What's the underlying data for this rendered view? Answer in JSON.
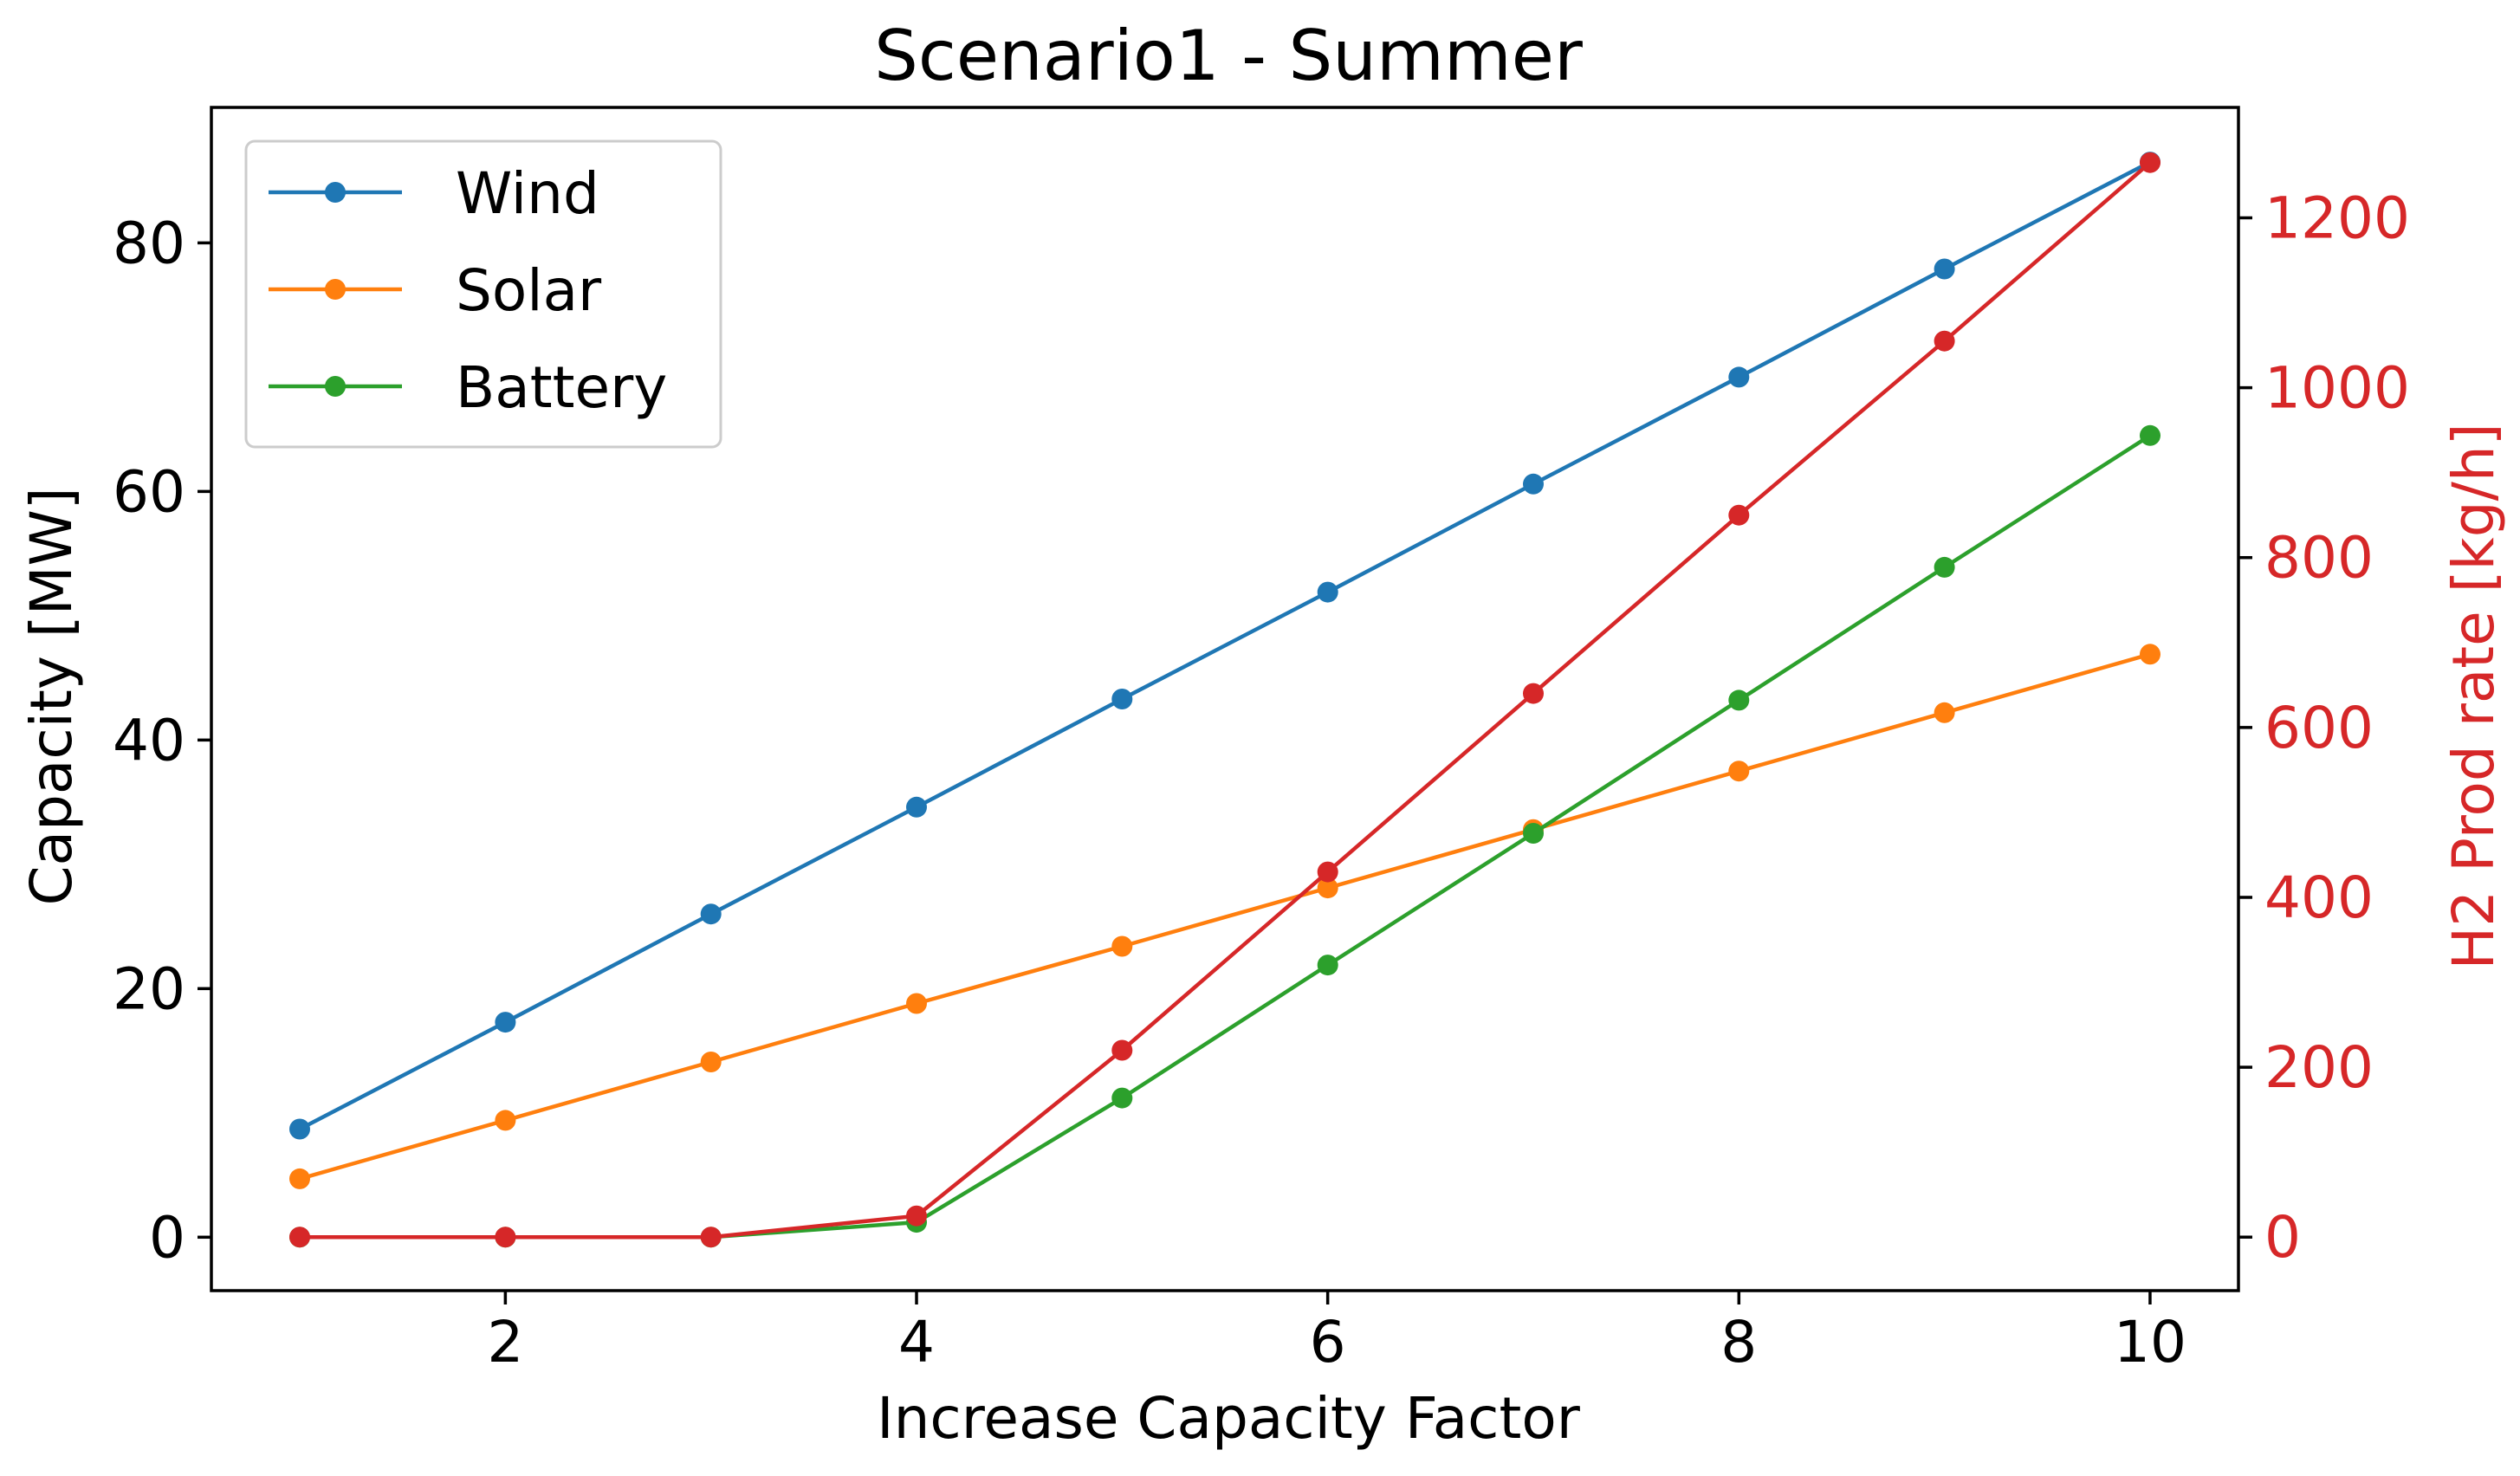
{
  "chart_data": {
    "type": "line",
    "title": "Scenario1 - Summer",
    "xlabel": "Increase Capacity Factor",
    "ylabel": "Capacity [MW]",
    "y2label": "H2 Prod rate [kg/h]",
    "xlim": [
      0.57,
      10.43
    ],
    "ylim": [
      -4.3,
      90.9
    ],
    "y2lim": [
      -63,
      1330
    ],
    "x_ticks": [
      2,
      4,
      6,
      8,
      10
    ],
    "y_ticks": [
      0,
      20,
      40,
      60,
      80
    ],
    "y2_ticks": [
      0,
      200,
      400,
      600,
      800,
      1000,
      1200
    ],
    "grid": false,
    "legend_position": "top-left",
    "x": [
      1,
      2,
      3,
      4,
      5,
      6,
      7,
      8,
      9,
      10
    ],
    "series": [
      {
        "name": "Wind",
        "axis": "left",
        "color": "#1f77b4",
        "values": [
          8.7,
          17.3,
          26.0,
          34.6,
          43.3,
          51.9,
          60.6,
          69.2,
          77.9,
          86.5
        ]
      },
      {
        "name": "Solar",
        "axis": "left",
        "color": "#ff7f0e",
        "values": [
          4.7,
          9.4,
          14.1,
          18.8,
          23.4,
          28.1,
          32.8,
          37.5,
          42.2,
          46.9
        ]
      },
      {
        "name": "Battery",
        "axis": "left",
        "color": "#2ca02c",
        "values": [
          0,
          0,
          0,
          1.2,
          11.2,
          21.9,
          32.5,
          43.2,
          53.9,
          64.5
        ]
      },
      {
        "axis": "right",
        "color": "#d62728",
        "values": [
          0,
          0,
          0,
          25,
          220,
          430,
          640,
          850,
          1055,
          1265
        ]
      }
    ],
    "right_axis_color": "#d62728"
  }
}
